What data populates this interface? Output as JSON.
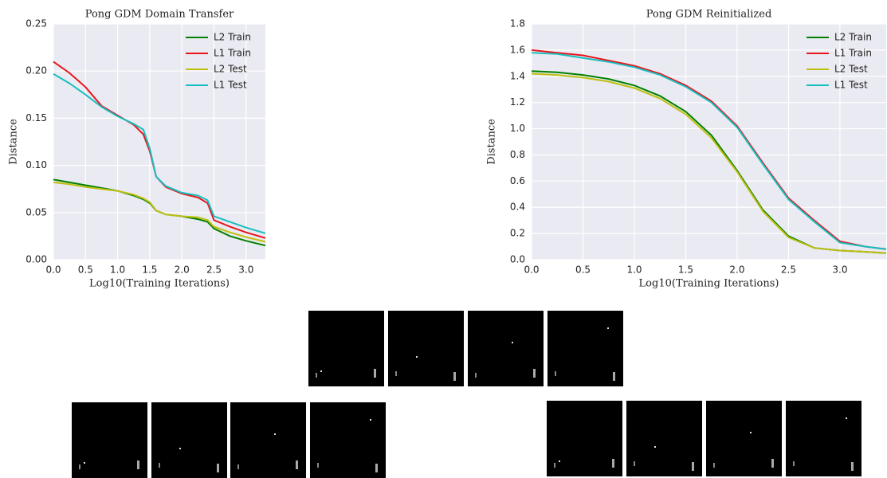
{
  "chart_data": [
    {
      "type": "line",
      "title": "Pong GDM Domain Transfer",
      "xlabel": "Log10(Training Iterations)",
      "ylabel": "Distance",
      "x": [
        0,
        0.25,
        0.5,
        0.75,
        1.0,
        1.25,
        1.4,
        1.5,
        1.6,
        1.75,
        2.0,
        2.25,
        2.4,
        2.5,
        2.75,
        3.0,
        3.3
      ],
      "xlim": [
        0,
        3.3
      ],
      "xticks": [
        {
          "value": 0,
          "label": "0.0"
        },
        0.5,
        {
          "value": 1,
          "label": "1.0"
        },
        1.5,
        {
          "value": 2,
          "label": "2.0"
        },
        2.5,
        {
          "value": 3,
          "label": "3.0"
        }
      ],
      "ylim": [
        0,
        0.25
      ],
      "yticks": [
        {
          "value": 0,
          "label": "0.00"
        },
        0.05,
        {
          "value": 0.1,
          "label": "0.10"
        },
        0.15,
        {
          "value": 0.2,
          "label": "0.20"
        },
        0.25
      ],
      "grid": true,
      "legend": "upper right",
      "series": [
        {
          "name": "L2 Train",
          "color": "#008000",
          "values": [
            0.085,
            0.082,
            0.079,
            0.076,
            0.073,
            0.068,
            0.064,
            0.06,
            0.052,
            0.048,
            0.046,
            0.043,
            0.04,
            0.033,
            0.025,
            0.02,
            0.015
          ]
        },
        {
          "name": "L1 Train",
          "color": "#e8151b",
          "values": [
            0.21,
            0.198,
            0.183,
            0.163,
            0.153,
            0.143,
            0.133,
            0.115,
            0.088,
            0.077,
            0.07,
            0.066,
            0.06,
            0.042,
            0.035,
            0.029,
            0.023
          ]
        },
        {
          "name": "L2 Test",
          "color": "#bfbf10",
          "values": [
            0.082,
            0.08,
            0.077,
            0.075,
            0.073,
            0.069,
            0.065,
            0.061,
            0.052,
            0.048,
            0.046,
            0.045,
            0.042,
            0.035,
            0.029,
            0.024,
            0.019
          ]
        },
        {
          "name": "L1 Test",
          "color": "#17bfbf",
          "values": [
            0.197,
            0.187,
            0.175,
            0.162,
            0.152,
            0.144,
            0.138,
            0.118,
            0.088,
            0.078,
            0.071,
            0.068,
            0.063,
            0.046,
            0.04,
            0.034,
            0.028
          ]
        }
      ]
    },
    {
      "type": "line",
      "title": "Pong GDM Reinitialized",
      "xlabel": "Log10(Training Iterations)",
      "ylabel": "Distance",
      "x": [
        0,
        0.25,
        0.5,
        0.75,
        1.0,
        1.25,
        1.5,
        1.75,
        2.0,
        2.25,
        2.5,
        2.75,
        3.0,
        3.25,
        3.45
      ],
      "xlim": [
        0,
        3.45
      ],
      "xticks": [
        {
          "value": 0,
          "label": "0.0"
        },
        0.5,
        {
          "value": 1,
          "label": "1.0"
        },
        1.5,
        {
          "value": 2,
          "label": "2.0"
        },
        2.5,
        {
          "value": 3,
          "label": "3.0"
        }
      ],
      "ylim": [
        0,
        1.8
      ],
      "yticks": [
        {
          "value": 0,
          "label": "0.0"
        },
        0.2,
        0.4,
        0.6,
        0.8,
        {
          "value": 1,
          "label": "1.0"
        },
        1.2,
        1.4,
        1.6,
        1.8
      ],
      "grid": true,
      "legend": "upper right",
      "series": [
        {
          "name": "L2 Train",
          "color": "#008000",
          "values": [
            1.44,
            1.43,
            1.41,
            1.38,
            1.33,
            1.25,
            1.13,
            0.95,
            0.68,
            0.38,
            0.18,
            0.09,
            0.07,
            0.06,
            0.05
          ]
        },
        {
          "name": "L1 Train",
          "color": "#e8151b",
          "values": [
            1.6,
            1.58,
            1.56,
            1.52,
            1.48,
            1.42,
            1.33,
            1.21,
            1.02,
            0.74,
            0.47,
            0.3,
            0.14,
            0.1,
            0.08
          ]
        },
        {
          "name": "L2 Test",
          "color": "#bfbf10",
          "values": [
            1.42,
            1.41,
            1.39,
            1.36,
            1.31,
            1.23,
            1.11,
            0.93,
            0.67,
            0.37,
            0.17,
            0.09,
            0.07,
            0.06,
            0.05
          ]
        },
        {
          "name": "L1 Test",
          "color": "#17bfbf",
          "values": [
            1.58,
            1.57,
            1.54,
            1.51,
            1.47,
            1.41,
            1.32,
            1.2,
            1.01,
            0.73,
            0.46,
            0.29,
            0.13,
            0.1,
            0.08
          ]
        }
      ]
    }
  ]
}
